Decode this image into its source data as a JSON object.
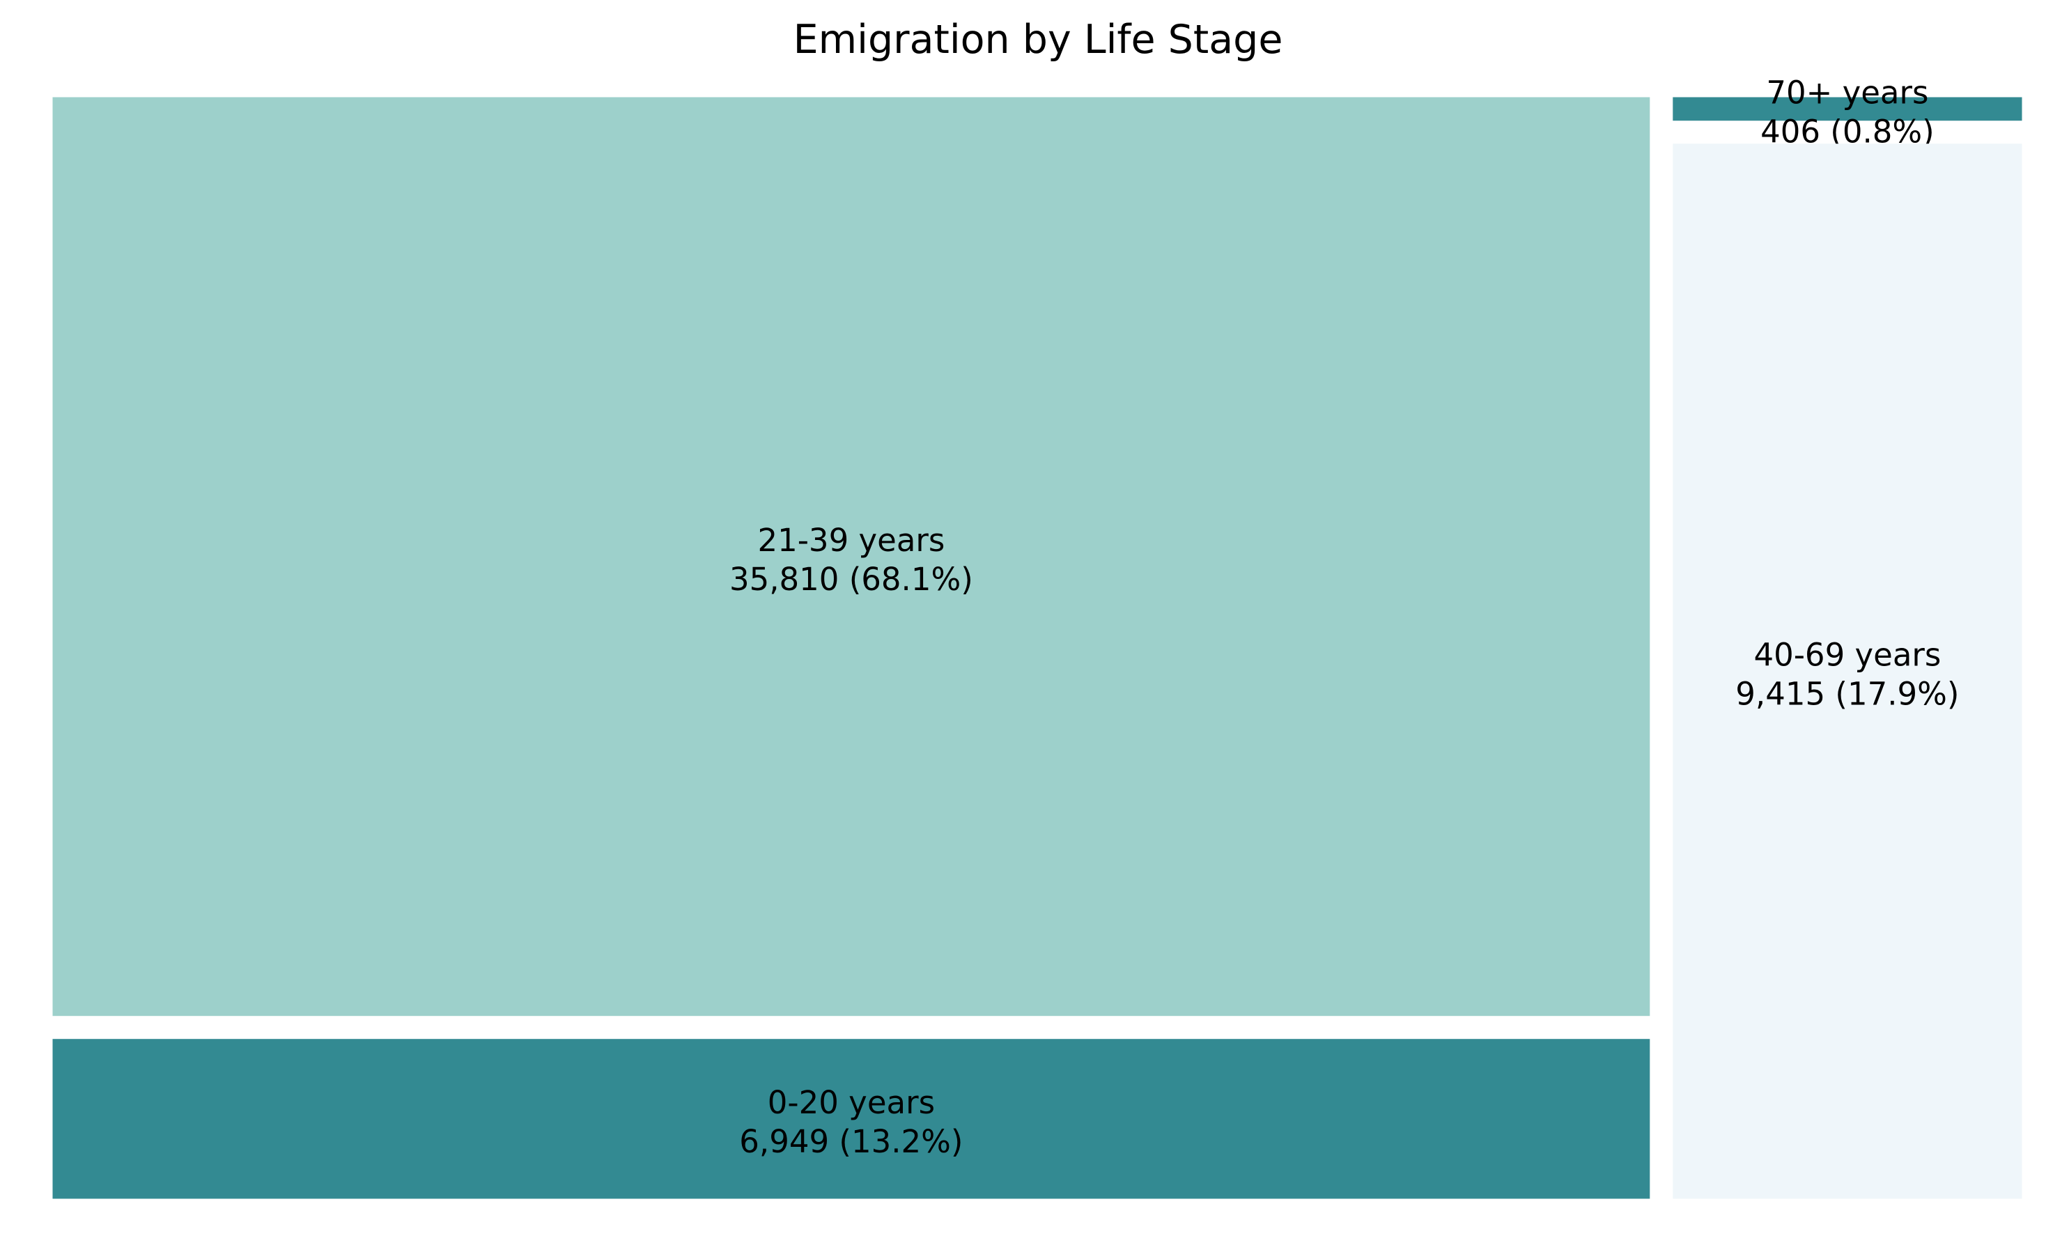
{
  "chart_data": {
    "type": "treemap",
    "title": "Emigration by Life Stage",
    "tiles": [
      {
        "name": "21-39 years",
        "value": 35810,
        "percent": "68.1%",
        "value_text": "35,810 (68.1%)",
        "color": "#9dd0cb"
      },
      {
        "name": "0-20 years",
        "value": 6949,
        "percent": "13.2%",
        "value_text": "6,949 (13.2%)",
        "color": "#338a92"
      },
      {
        "name": "40-69 years",
        "value": 9415,
        "percent": "17.9%",
        "value_text": "9,415 (17.9%)",
        "color": "#eff6fa"
      },
      {
        "name": "70+ years",
        "value": 406,
        "percent": "0.8%",
        "value_text": "406 (0.8%)",
        "color": "#338a92"
      }
    ],
    "grid": false,
    "legend": "none"
  }
}
